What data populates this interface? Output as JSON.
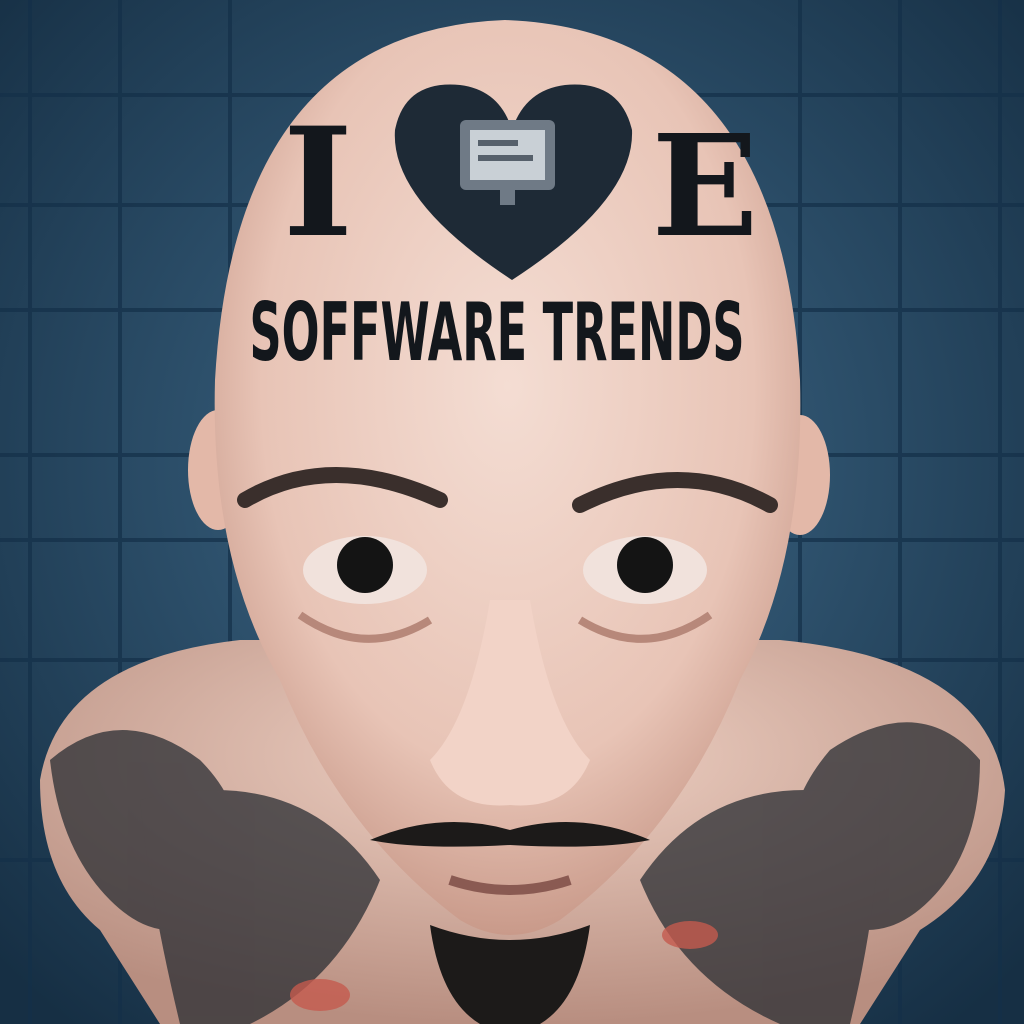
{
  "tattoo": {
    "left_letter": "I",
    "right_letter": "E",
    "text": "SOFFWARE TRENDS"
  }
}
